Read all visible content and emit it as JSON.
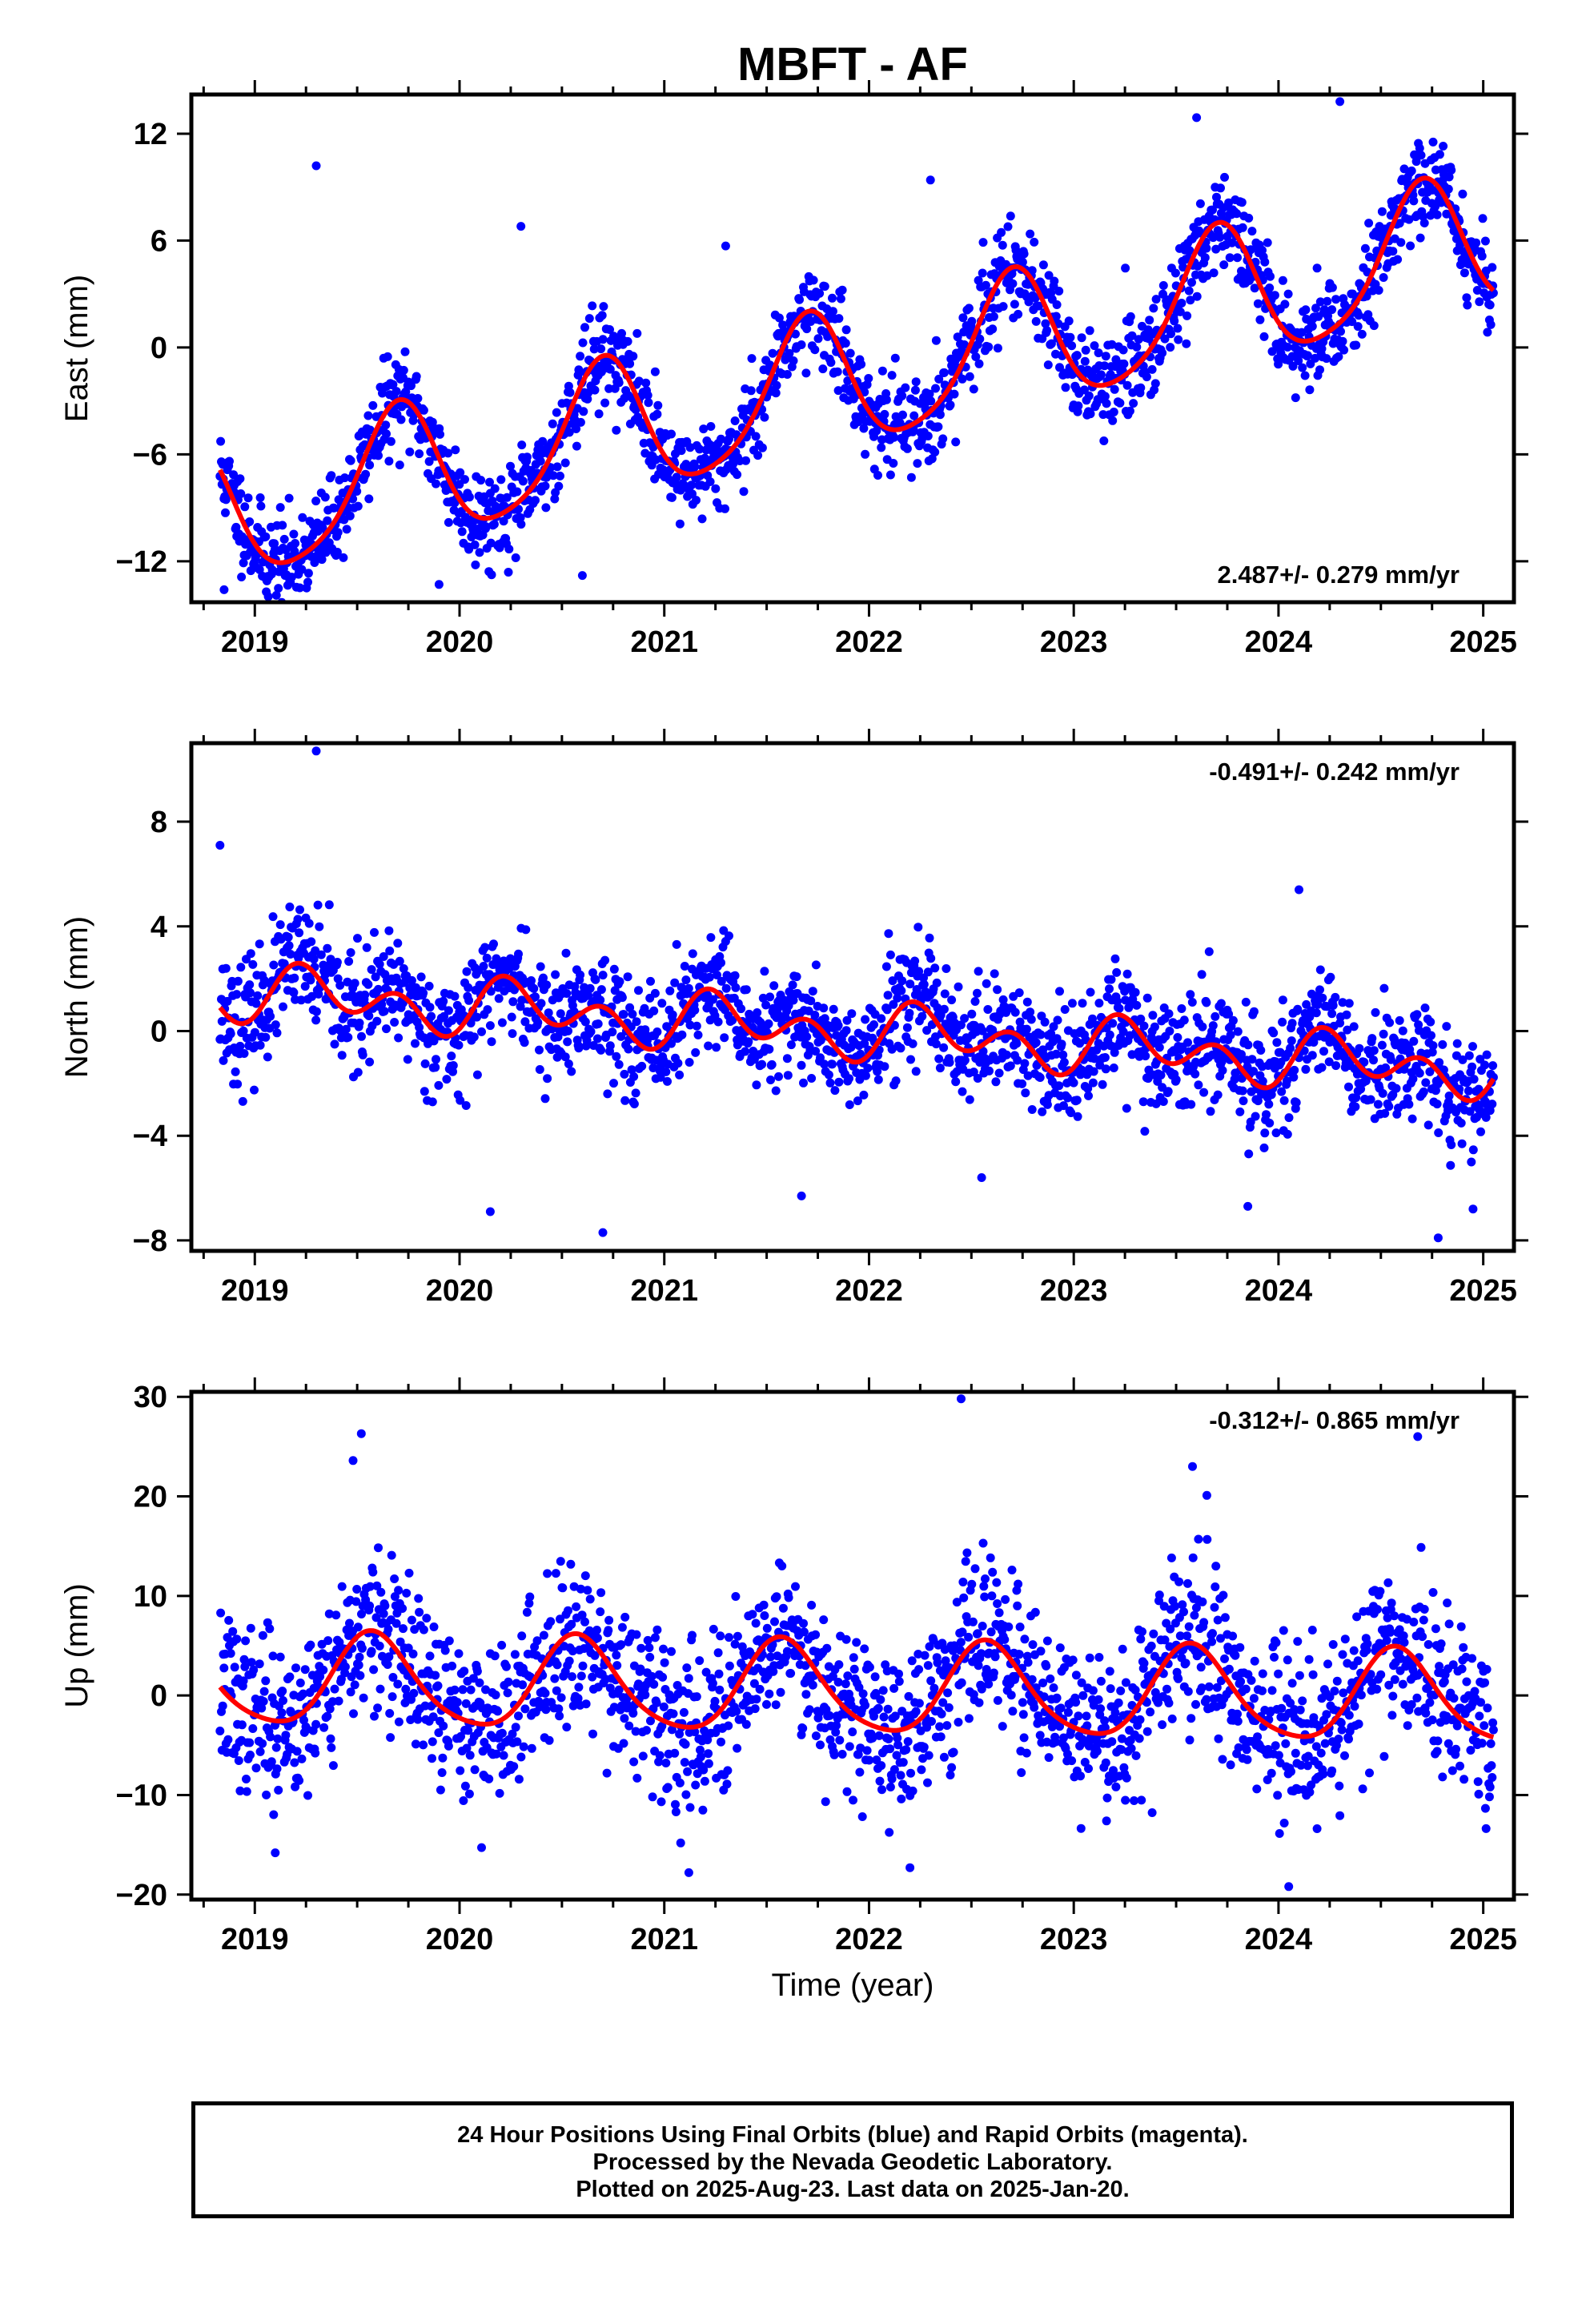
{
  "title": "MBFT - AF",
  "xlabel": "Time (year)",
  "caption": {
    "line1": "24 Hour Positions Using Final Orbits (blue) and Rapid Orbits (magenta).",
    "line2": "Processed by the Nevada Geodetic Laboratory.",
    "line3": "Plotted on 2025-Aug-23. Last data on 2025-Jan-20."
  },
  "colors": {
    "points": "#0000ff",
    "fit": "#ff0000",
    "frame": "#000000"
  },
  "chart_data": [
    {
      "type": "scatter",
      "panel": "east",
      "ylabel": "East (mm)",
      "rate_label": "2.487+/- 0.279 mm/yr",
      "rate_position": "bottom-right",
      "xlim": [
        2018.69,
        2025.15
      ],
      "ylim": [
        -14.3,
        14.2
      ],
      "xticks": [
        2019,
        2020,
        2021,
        2022,
        2023,
        2024,
        2025
      ],
      "yticks": [
        -12,
        -6,
        0,
        6,
        12
      ],
      "model": {
        "t0": 2018.85,
        "offset": -9.5,
        "rate": 2.487,
        "annual_cos": -1.3,
        "annual_sin": -3.6,
        "semi_cos": -0.6,
        "semi_sin": 0.2
      },
      "scatter": {
        "sigma": 1.3,
        "count": 1900,
        "seed": 11
      },
      "outliers": [
        [
          2019.3,
          10.2
        ],
        [
          2020.6,
          -12.8
        ],
        [
          2019.9,
          -13.3
        ],
        [
          2023.6,
          12.9
        ],
        [
          2024.3,
          13.8
        ],
        [
          2020.3,
          6.8
        ],
        [
          2021.3,
          5.7
        ],
        [
          2022.3,
          9.4
        ],
        [
          2018.85,
          -13.6
        ]
      ]
    },
    {
      "type": "scatter",
      "panel": "north",
      "ylabel": "North (mm)",
      "rate_label": "-0.491+/- 0.242 mm/yr",
      "rate_position": "top-right",
      "xlim": [
        2018.69,
        2025.15
      ],
      "ylim": [
        -8.4,
        11.0
      ],
      "xticks": [
        2019,
        2020,
        2021,
        2022,
        2023,
        2024,
        2025
      ],
      "yticks": [
        -8,
        -4,
        0,
        4,
        8
      ],
      "model": {
        "t0": 2018.85,
        "offset": 1.5,
        "rate": -0.491,
        "annual_cos": -0.2,
        "annual_sin": 0.55,
        "semi_cos": -0.65,
        "semi_sin": 0.45
      },
      "scatter": {
        "sigma": 1.1,
        "count": 1900,
        "seed": 23
      },
      "outliers": [
        [
          2019.3,
          10.7
        ],
        [
          2018.83,
          7.1
        ],
        [
          2020.15,
          -6.9
        ],
        [
          2020.7,
          -7.7
        ],
        [
          2021.67,
          -6.3
        ],
        [
          2024.1,
          5.4
        ],
        [
          2024.78,
          -7.9
        ],
        [
          2023.85,
          -6.7
        ],
        [
          2024.95,
          -6.8
        ],
        [
          2022.55,
          -5.6
        ]
      ]
    },
    {
      "type": "scatter",
      "panel": "up",
      "ylabel": "Up (mm)",
      "rate_label": "-0.312+/- 0.865 mm/yr",
      "rate_position": "top-right",
      "xlim": [
        2018.69,
        2025.15
      ],
      "ylim": [
        -20.5,
        30.5
      ],
      "xticks": [
        2019,
        2020,
        2021,
        2022,
        2023,
        2024,
        2025
      ],
      "yticks": [
        -20,
        -10,
        0,
        10,
        20,
        30
      ],
      "model": {
        "t0": 2018.85,
        "offset": 1.5,
        "rate": -0.312,
        "annual_cos": -4.0,
        "annual_sin": -2.2,
        "semi_cos": 0.6,
        "semi_sin": 0.4
      },
      "scatter": {
        "sigma": 4.0,
        "count": 1900,
        "seed": 37
      },
      "outliers": [
        [
          2022.45,
          29.8
        ],
        [
          2019.52,
          26.3
        ],
        [
          2024.68,
          26.0
        ],
        [
          2019.48,
          23.6
        ],
        [
          2023.58,
          23.0
        ],
        [
          2023.65,
          20.1
        ],
        [
          2024.05,
          -19.2
        ],
        [
          2021.12,
          -17.8
        ],
        [
          2022.2,
          -17.3
        ],
        [
          2019.1,
          -15.8
        ]
      ]
    }
  ]
}
